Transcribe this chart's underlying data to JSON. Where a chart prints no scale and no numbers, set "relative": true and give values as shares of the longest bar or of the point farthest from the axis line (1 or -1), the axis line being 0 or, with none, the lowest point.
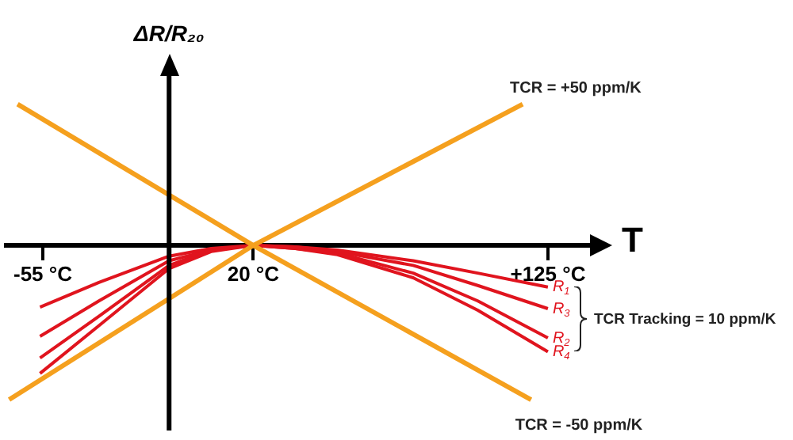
{
  "chart_data": {
    "type": "line",
    "relative": true,
    "xlabel": "T",
    "ylabel": "ΔR/R₂₀",
    "marker": "none",
    "xlim": [
      -68,
      140
    ],
    "xticks": [
      {
        "value": -55,
        "label": "-55 °C"
      },
      {
        "value": 20,
        "label": "20 °C"
      },
      {
        "value": 125,
        "label": "+125 °C"
      }
    ],
    "ref_lines": [
      {
        "axis": "x",
        "value": -10
      }
    ],
    "series": [
      {
        "name": "TCR = +50 ppm/K",
        "color": "#f5a01e",
        "x": [
          -67,
          20,
          116
        ],
        "values": [
          -1.0,
          0,
          0.915
        ]
      },
      {
        "name": "TCR = -50 ppm/K",
        "color": "#f5a01e",
        "x": [
          -64,
          20,
          119
        ],
        "values": [
          0.915,
          0,
          -1.0
        ]
      },
      {
        "name": "R$_{1}$",
        "color": "#e0141e",
        "x": [
          -56,
          -35,
          -10,
          5,
          20,
          35,
          50,
          77,
          100,
          125
        ],
        "values": [
          -0.4,
          -0.24,
          -0.07,
          -0.02,
          0,
          -0.01,
          -0.03,
          -0.1,
          -0.18,
          -0.27
        ]
      },
      {
        "name": "R$_{3}$",
        "color": "#e0141e",
        "x": [
          -56,
          -35,
          -10,
          5,
          20,
          35,
          50,
          77,
          100,
          125
        ],
        "values": [
          -0.59,
          -0.36,
          -0.1,
          -0.03,
          0,
          -0.01,
          -0.04,
          -0.13,
          -0.26,
          -0.41
        ]
      },
      {
        "name": "R$_{2}$",
        "color": "#e0141e",
        "x": [
          -56,
          -35,
          -10,
          5,
          20,
          35,
          50,
          77,
          100,
          125
        ],
        "values": [
          -0.73,
          -0.46,
          -0.13,
          -0.03,
          0,
          -0.02,
          -0.05,
          -0.18,
          -0.36,
          -0.6
        ]
      },
      {
        "name": "R$_{4}$",
        "color": "#e0141e",
        "x": [
          -56,
          -35,
          -10,
          5,
          20,
          35,
          50,
          77,
          100,
          125
        ],
        "values": [
          -0.83,
          -0.52,
          -0.15,
          -0.04,
          0,
          -0.02,
          -0.06,
          -0.21,
          -0.42,
          -0.69
        ]
      }
    ],
    "annotations": [
      "TCR Tracking = 10 ppm/K"
    ]
  }
}
